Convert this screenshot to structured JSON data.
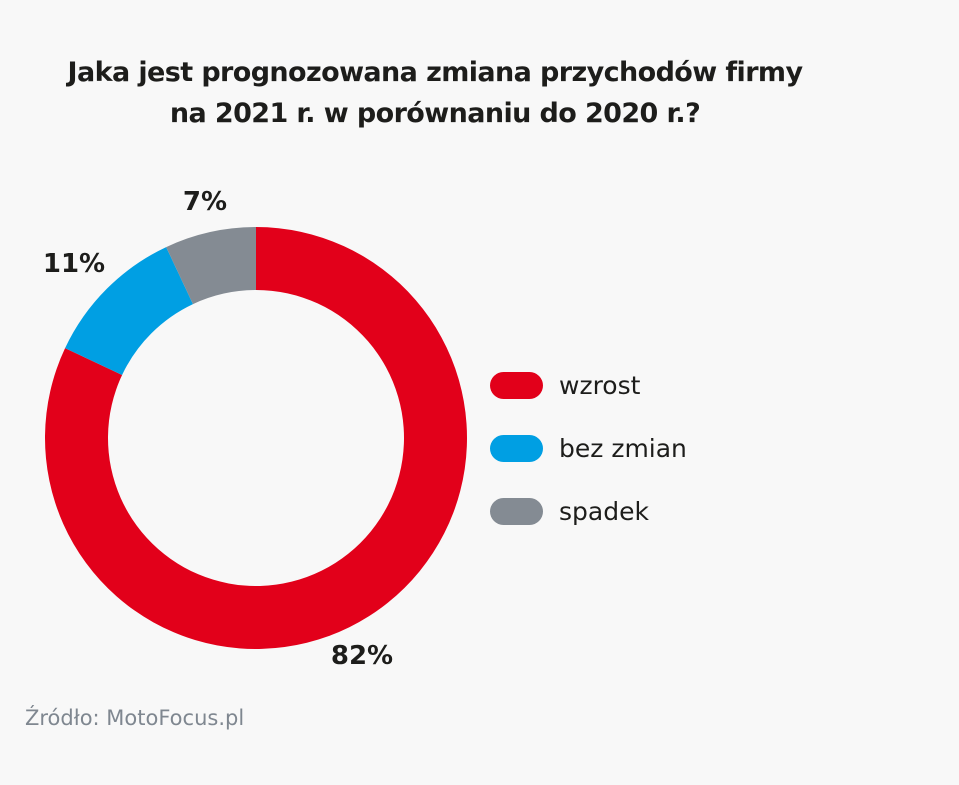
{
  "title": {
    "line1": "Jaka jest prognozowana zmiana przychodów firmy",
    "line2": "na 2021 r. w porównaniu do 2020 r.?"
  },
  "chart_data": {
    "type": "pie",
    "variant": "donut",
    "categories": [
      "wzrost",
      "bez zmian",
      "spadek"
    ],
    "values": [
      82,
      11,
      7
    ],
    "labels": [
      "82%",
      "11%",
      "7%"
    ],
    "colors": [
      "#e2001a",
      "#009fe3",
      "#848b93"
    ],
    "legend_position": "right"
  },
  "source": "Źródło: MotoFocus.pl"
}
